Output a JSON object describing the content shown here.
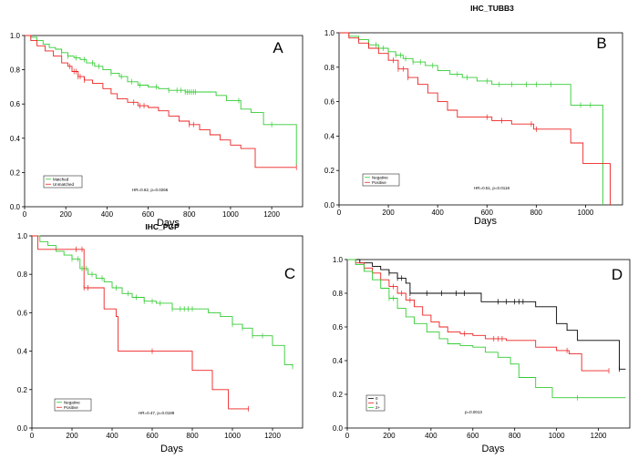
{
  "chart_data": [
    {
      "id": "A",
      "type": "line",
      "letter": "A",
      "title": "",
      "xlabel": "Days",
      "ylabel": "",
      "xlim": [
        0,
        1350
      ],
      "ylim": [
        0,
        1.0
      ],
      "xticks": [
        0,
        200,
        400,
        600,
        800,
        1000,
        1200
      ],
      "yticks": [
        0.0,
        0.2,
        0.4,
        0.6,
        0.8,
        1.0
      ],
      "annotation": "HR=0.62, p=0.0266",
      "legend": {
        "position": "bottom-left"
      },
      "series": [
        {
          "name": "Matched",
          "color": "#33cc33",
          "x": [
            0,
            30,
            60,
            90,
            120,
            150,
            180,
            210,
            240,
            270,
            300,
            340,
            380,
            420,
            460,
            500,
            550,
            600,
            650,
            700,
            780,
            850,
            930,
            980,
            1050,
            1100,
            1160,
            1200,
            1280,
            1320
          ],
          "y": [
            1.0,
            0.99,
            0.97,
            0.95,
            0.93,
            0.92,
            0.9,
            0.88,
            0.87,
            0.86,
            0.84,
            0.82,
            0.8,
            0.78,
            0.76,
            0.73,
            0.71,
            0.7,
            0.69,
            0.68,
            0.67,
            0.67,
            0.65,
            0.62,
            0.57,
            0.55,
            0.48,
            0.48,
            0.48,
            0.24
          ],
          "censor_x": [
            180,
            210,
            250,
            290,
            330,
            360,
            420,
            470,
            520,
            560,
            640,
            700,
            740,
            760,
            780,
            790,
            800,
            810,
            820,
            830,
            1040,
            1200
          ]
        },
        {
          "name": "Unmatched",
          "color": "#ee2222",
          "x": [
            0,
            30,
            60,
            100,
            140,
            180,
            210,
            230,
            260,
            290,
            330,
            380,
            420,
            450,
            500,
            550,
            600,
            650,
            700,
            750,
            800,
            850,
            900,
            950,
            1000,
            1050,
            1120,
            1200,
            1300,
            1320
          ],
          "y": [
            1.0,
            0.97,
            0.94,
            0.91,
            0.88,
            0.84,
            0.82,
            0.79,
            0.76,
            0.74,
            0.72,
            0.69,
            0.66,
            0.63,
            0.61,
            0.59,
            0.58,
            0.56,
            0.53,
            0.5,
            0.48,
            0.45,
            0.42,
            0.39,
            0.36,
            0.34,
            0.23,
            0.23,
            0.23,
            0.23
          ],
          "censor_x": [
            220,
            240,
            250,
            260,
            270,
            290,
            530,
            560,
            580,
            800,
            820,
            1320
          ]
        }
      ]
    },
    {
      "id": "B",
      "type": "line",
      "letter": "B",
      "title": "IHC_TUBB3",
      "xlabel": "Days",
      "ylabel": "",
      "xlim": [
        0,
        1150
      ],
      "ylim": [
        0,
        1.0
      ],
      "xticks": [
        0,
        200,
        400,
        600,
        800,
        1000
      ],
      "yticks": [
        0.0,
        0.2,
        0.4,
        0.6,
        0.8,
        1.0
      ],
      "annotation": "HR=0.51, p=0.0118",
      "legend": {
        "position": "bottom-left"
      },
      "series": [
        {
          "name": "Negative",
          "color": "#33cc33",
          "x": [
            0,
            40,
            80,
            120,
            160,
            200,
            230,
            260,
            300,
            350,
            400,
            450,
            500,
            560,
            620,
            700,
            800,
            900,
            940,
            960,
            1060,
            1070
          ],
          "y": [
            1.0,
            0.98,
            0.96,
            0.93,
            0.91,
            0.89,
            0.87,
            0.85,
            0.83,
            0.81,
            0.78,
            0.76,
            0.74,
            0.72,
            0.7,
            0.7,
            0.7,
            0.7,
            0.58,
            0.58,
            0.58,
            0.0
          ],
          "censor_x": [
            120,
            150,
            180,
            200,
            230,
            250,
            270,
            300,
            330,
            380,
            480,
            520,
            600,
            650,
            700,
            760,
            800,
            860,
            980,
            1020
          ]
        },
        {
          "name": "Positive",
          "color": "#ee2222",
          "x": [
            0,
            40,
            80,
            120,
            160,
            200,
            240,
            280,
            320,
            360,
            400,
            440,
            480,
            540,
            620,
            700,
            790,
            880,
            940,
            990,
            1050,
            1100
          ],
          "y": [
            1.0,
            0.97,
            0.94,
            0.91,
            0.88,
            0.84,
            0.79,
            0.74,
            0.7,
            0.65,
            0.6,
            0.55,
            0.51,
            0.51,
            0.49,
            0.47,
            0.44,
            0.44,
            0.36,
            0.24,
            0.24,
            0.0
          ],
          "censor_x": [
            220,
            240,
            260,
            280,
            600,
            660,
            780,
            800
          ]
        }
      ]
    },
    {
      "id": "C",
      "type": "line",
      "letter": "C",
      "title": "IHC_PGP",
      "xlabel": "Days",
      "ylabel": "",
      "xlim": [
        0,
        1350
      ],
      "ylim": [
        0,
        1.0
      ],
      "xticks": [
        0,
        200,
        400,
        600,
        800,
        1000,
        1200
      ],
      "yticks": [
        0.0,
        0.2,
        0.4,
        0.6,
        0.8,
        1.0
      ],
      "annotation": "HR=0.47, p=0.0189",
      "legend": {
        "position": "bottom-left"
      },
      "series": [
        {
          "name": "Negative",
          "color": "#33cc33",
          "x": [
            0,
            40,
            80,
            120,
            160,
            200,
            240,
            280,
            320,
            360,
            400,
            450,
            500,
            560,
            620,
            700,
            800,
            880,
            940,
            1000,
            1050,
            1100,
            1200,
            1260,
            1300
          ],
          "y": [
            1.0,
            0.97,
            0.95,
            0.92,
            0.9,
            0.88,
            0.83,
            0.8,
            0.78,
            0.76,
            0.73,
            0.7,
            0.68,
            0.66,
            0.65,
            0.62,
            0.62,
            0.6,
            0.58,
            0.54,
            0.52,
            0.48,
            0.43,
            0.33,
            0.32
          ],
          "censor_x": [
            200,
            230,
            250,
            270,
            300,
            350,
            420,
            480,
            520,
            560,
            600,
            640,
            700,
            740,
            760,
            780,
            800,
            1000,
            1050,
            1100,
            1150,
            1300
          ]
        },
        {
          "name": "Positive",
          "color": "#ee2222",
          "x": [
            0,
            30,
            220,
            260,
            360,
            420,
            430,
            620,
            800,
            900,
            980,
            1080
          ],
          "y": [
            1.0,
            0.93,
            0.93,
            0.73,
            0.62,
            0.58,
            0.4,
            0.4,
            0.3,
            0.2,
            0.1,
            0.1
          ],
          "censor_x": [
            220,
            250,
            260,
            280,
            600,
            1080
          ]
        }
      ]
    },
    {
      "id": "D",
      "type": "line",
      "letter": "D",
      "title": "",
      "xlabel": "Days",
      "ylabel": "",
      "xlim": [
        0,
        1350
      ],
      "ylim": [
        0,
        1.0
      ],
      "xticks": [
        0,
        200,
        400,
        600,
        800,
        1000,
        1200
      ],
      "yticks": [
        0.0,
        0.2,
        0.4,
        0.6,
        0.8,
        1.0
      ],
      "annotation": "p=0.0013",
      "legend": {
        "position": "bottom-left"
      },
      "series": [
        {
          "name": "0",
          "color": "#000000",
          "x": [
            0,
            60,
            120,
            160,
            200,
            240,
            280,
            300,
            600,
            640,
            900,
            1000,
            1050,
            1100,
            1200,
            1300,
            1330
          ],
          "y": [
            1.0,
            0.98,
            0.96,
            0.94,
            0.92,
            0.89,
            0.86,
            0.8,
            0.8,
            0.75,
            0.72,
            0.62,
            0.58,
            0.52,
            0.52,
            0.35,
            0.35
          ],
          "censor_x": [
            200,
            240,
            260,
            300,
            380,
            450,
            520,
            560,
            720,
            760,
            800,
            820,
            840,
            1300
          ]
        },
        {
          "name": "1",
          "color": "#ee2222",
          "x": [
            0,
            40,
            80,
            120,
            160,
            200,
            240,
            280,
            320,
            360,
            400,
            440,
            480,
            540,
            600,
            660,
            760,
            900,
            1000,
            1060,
            1120,
            1200,
            1250
          ],
          "y": [
            1.0,
            0.98,
            0.95,
            0.92,
            0.88,
            0.84,
            0.8,
            0.76,
            0.72,
            0.67,
            0.63,
            0.6,
            0.57,
            0.56,
            0.55,
            0.53,
            0.52,
            0.48,
            0.46,
            0.44,
            0.34,
            0.34,
            0.34
          ],
          "censor_x": [
            220,
            260,
            300,
            560,
            700,
            720,
            740,
            1050,
            1250
          ]
        },
        {
          "name": "2+",
          "color": "#33cc33",
          "x": [
            0,
            40,
            80,
            120,
            160,
            200,
            240,
            280,
            320,
            380,
            440,
            480,
            540,
            600,
            660,
            720,
            780,
            820,
            900,
            980,
            1100,
            1330
          ],
          "y": [
            1.0,
            0.97,
            0.93,
            0.88,
            0.83,
            0.77,
            0.71,
            0.66,
            0.62,
            0.57,
            0.53,
            0.5,
            0.49,
            0.48,
            0.45,
            0.42,
            0.38,
            0.3,
            0.24,
            0.18,
            0.18,
            0.18
          ],
          "censor_x": [
            200,
            220,
            1100
          ]
        }
      ]
    }
  ]
}
